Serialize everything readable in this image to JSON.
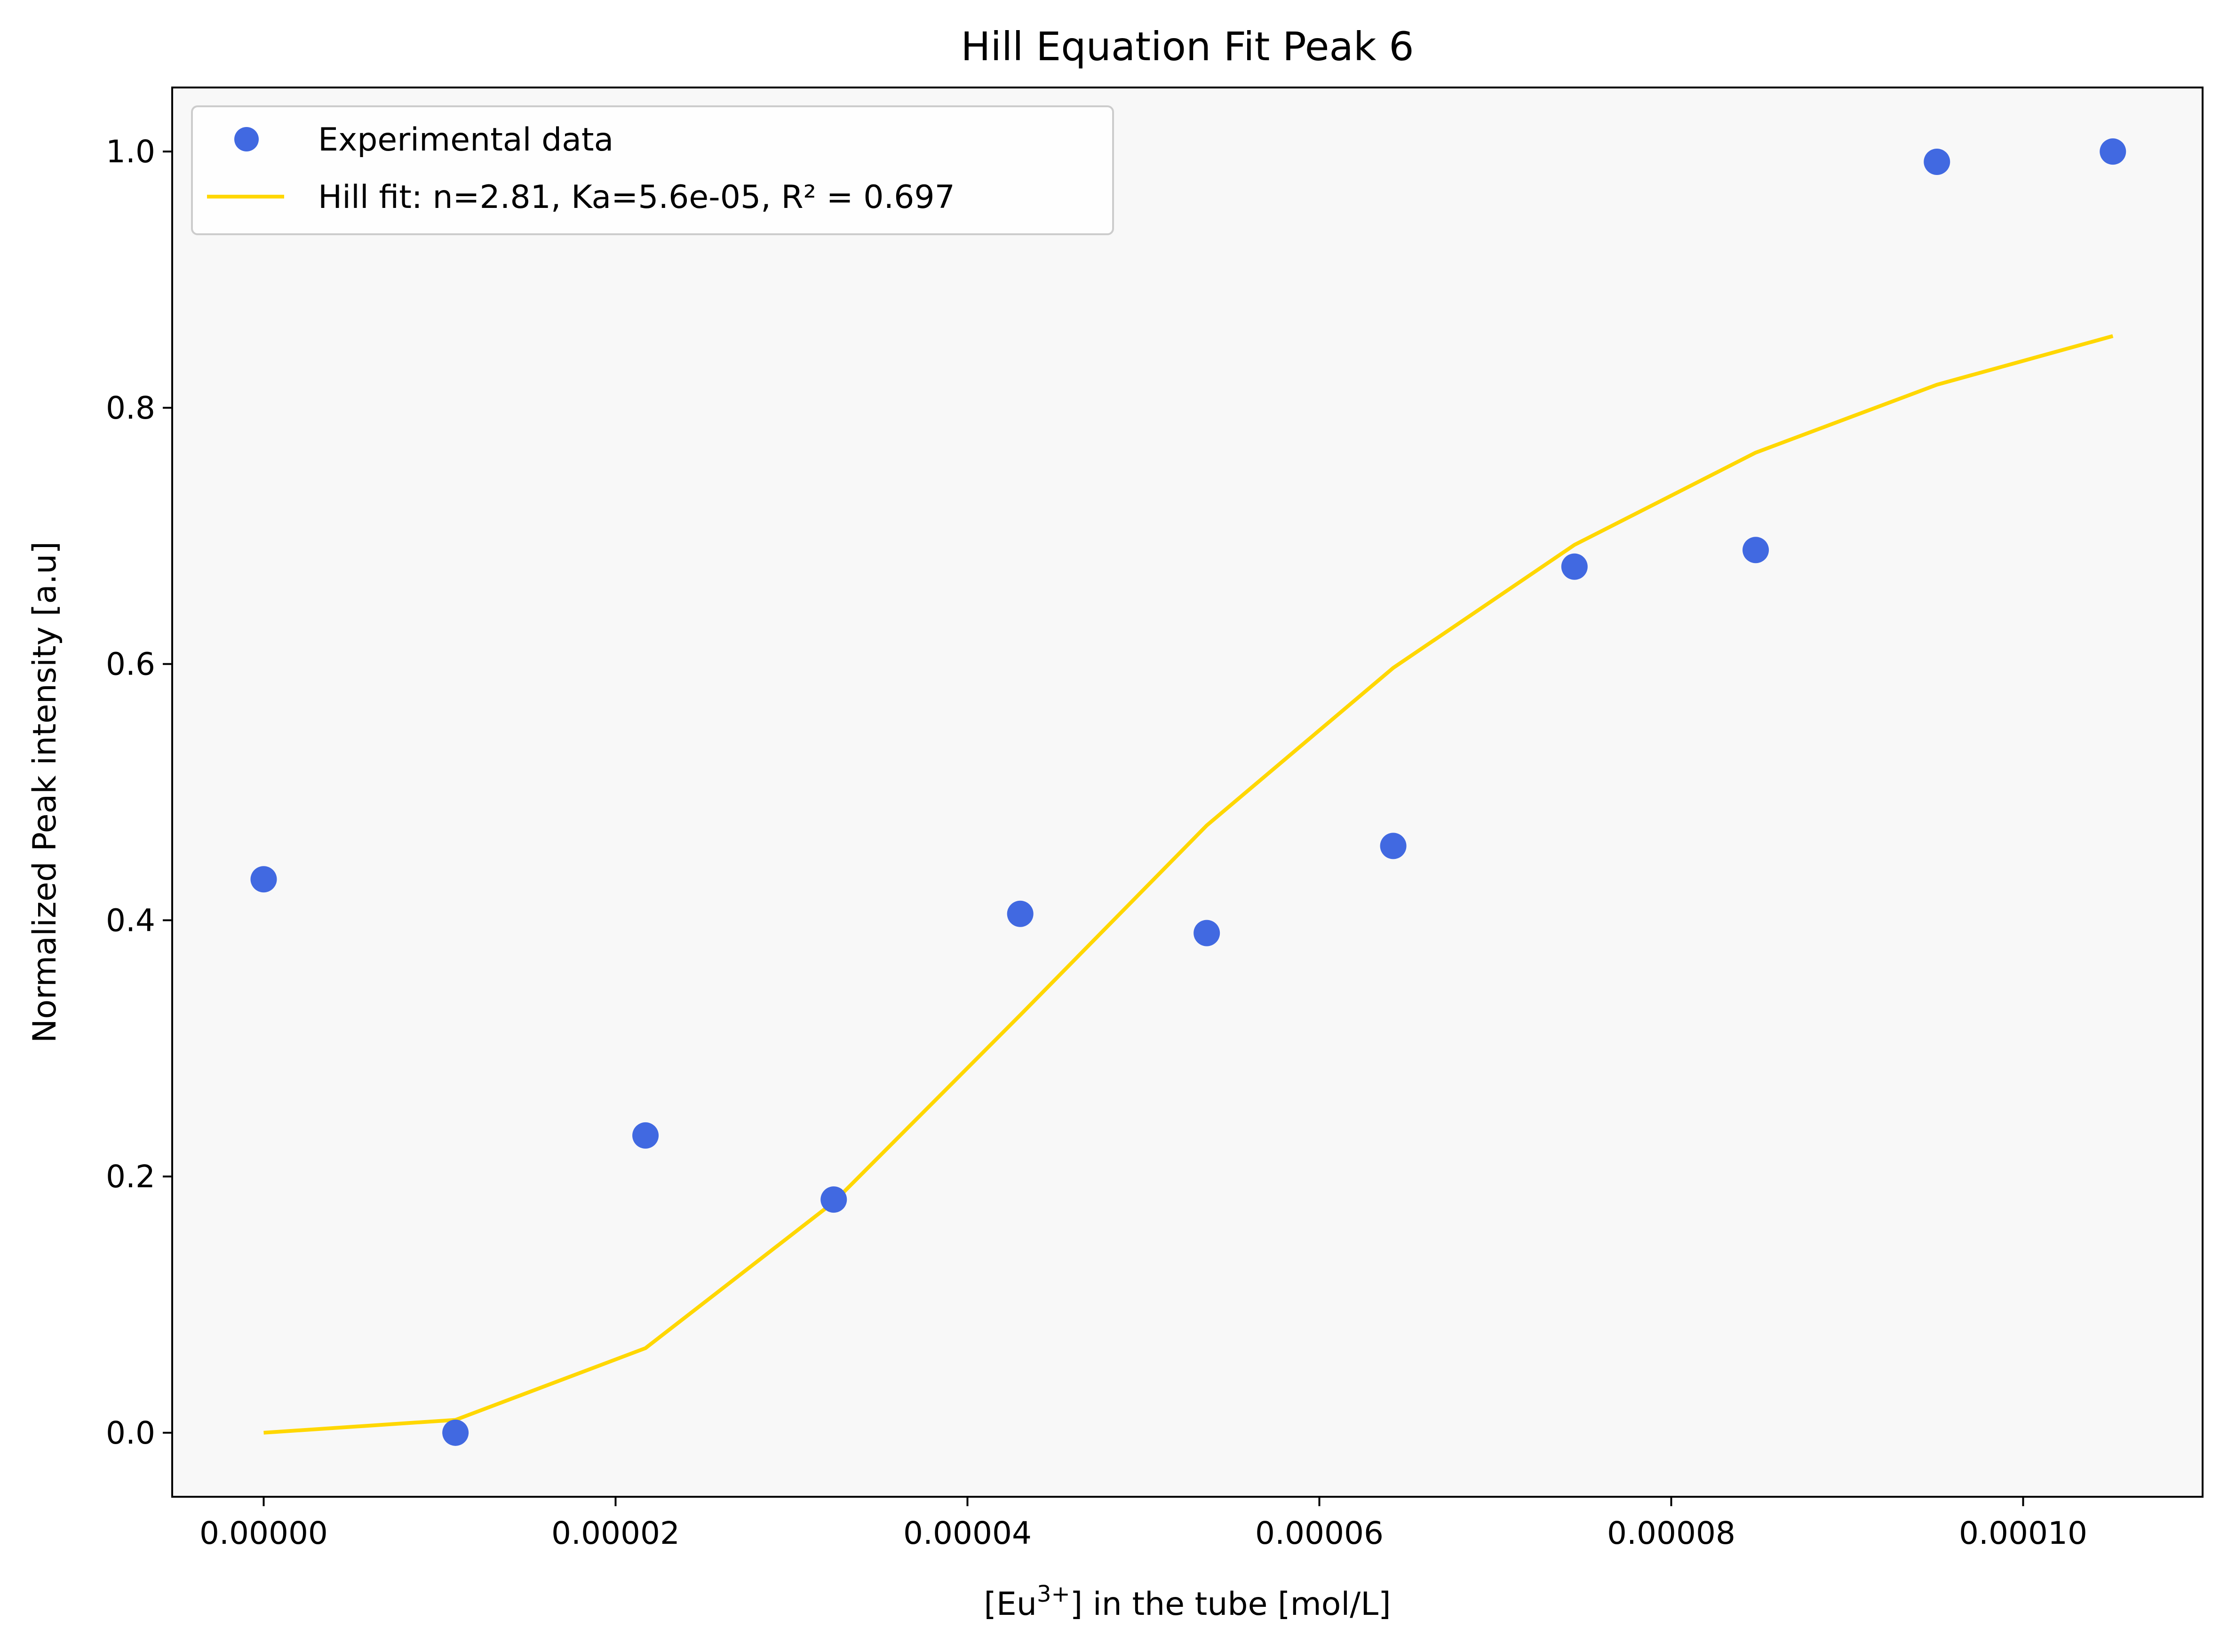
{
  "chart_data": {
    "type": "scatter",
    "title": "Hill Equation Fit Peak 6",
    "xlabel_prefix": "[Eu",
    "xlabel_sup": "3+",
    "xlabel_suffix": "] in the tube [mol/L]",
    "ylabel": "Normalized Peak intensity [a.u]",
    "xlim": [
      -5.2e-06,
      0.0001102
    ],
    "ylim": [
      -0.05,
      1.05
    ],
    "xticks": [
      0,
      2e-05,
      4e-05,
      6e-05,
      8e-05,
      0.0001
    ],
    "xtick_labels": [
      "0.00000",
      "0.00002",
      "0.00004",
      "0.00006",
      "0.00008",
      "0.00010"
    ],
    "yticks": [
      0,
      0.2,
      0.4,
      0.6,
      0.8,
      1.0
    ],
    "ytick_labels": [
      "0.0",
      "0.2",
      "0.4",
      "0.6",
      "0.8",
      "1.0"
    ],
    "grid": false,
    "legend_position": "top-left",
    "plot_background": "#f8f8f8",
    "series": [
      {
        "name": "Experimental data",
        "kind": "scatter",
        "color": "#4169e1",
        "x": [
          0,
          1.09e-05,
          2.17e-05,
          3.24e-05,
          4.3e-05,
          5.36e-05,
          6.42e-05,
          7.45e-05,
          8.48e-05,
          9.51e-05,
          0.0001051
        ],
        "y": [
          0.432,
          0.0,
          0.232,
          0.182,
          0.405,
          0.39,
          0.458,
          0.676,
          0.689,
          0.992,
          1.0
        ]
      },
      {
        "name": "Hill fit: n=2.81, Ka=5.6e-05, R² = 0.697",
        "kind": "line",
        "color": "#ffd700",
        "x": [
          0,
          1.09e-05,
          2.17e-05,
          3.24e-05,
          4.3e-05,
          5.36e-05,
          6.42e-05,
          7.45e-05,
          8.48e-05,
          9.51e-05,
          0.0001051
        ],
        "y": [
          0.0,
          0.01,
          0.066,
          0.18,
          0.326,
          0.474,
          0.597,
          0.693,
          0.765,
          0.818,
          0.856
        ]
      }
    ]
  }
}
